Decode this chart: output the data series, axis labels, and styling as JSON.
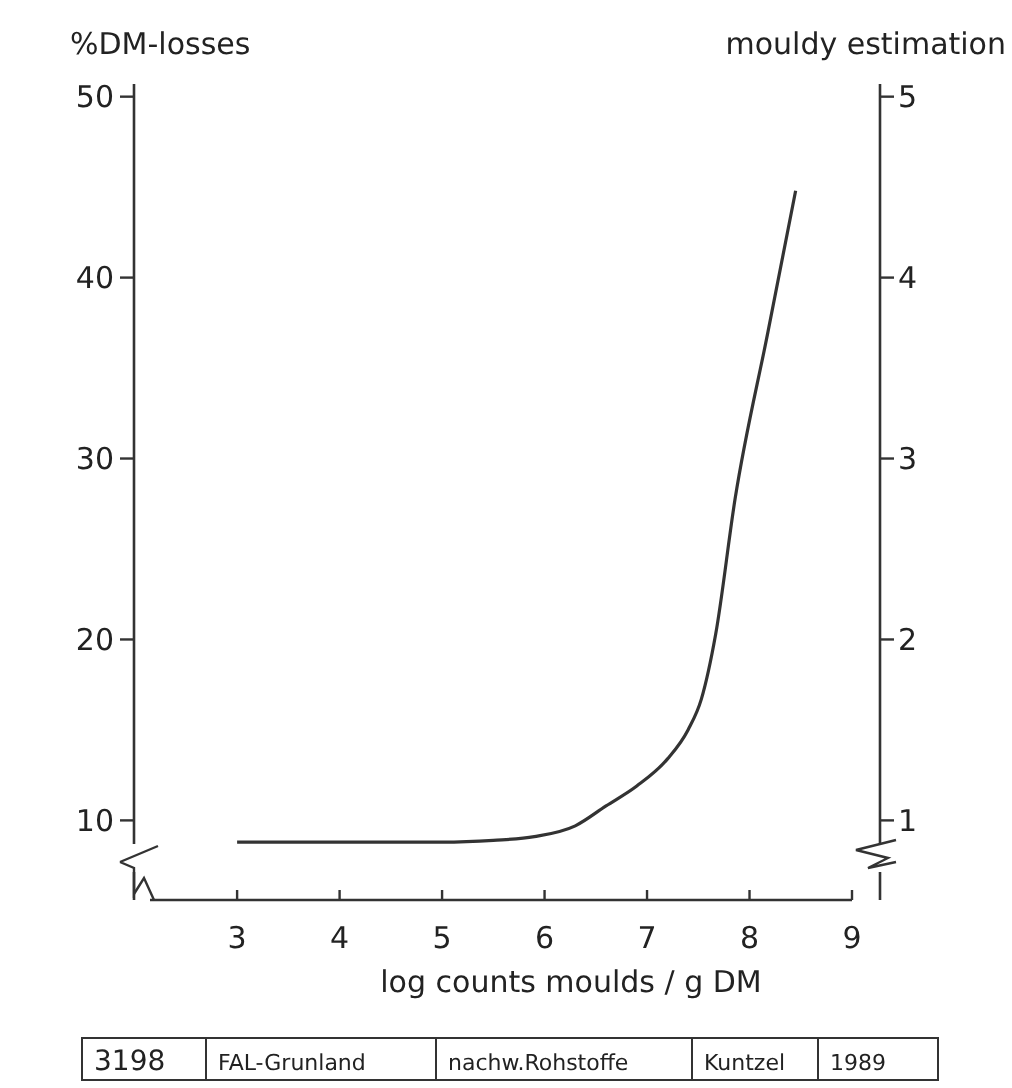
{
  "chart_data": {
    "type": "line",
    "ylabel": "%DM-losses",
    "y2label": "mouldy estimation",
    "xlabel": "log counts moulds / g DM",
    "x": [
      3,
      4,
      5,
      5.5,
      5.9,
      6.3,
      6.6,
      6.9,
      7.2,
      7.4,
      7.53,
      7.67,
      7.86,
      8.18,
      8.45
    ],
    "series": [
      {
        "color": "#333333",
        "values": [
          8.8,
          8.8,
          8.8,
          8.9,
          9.1,
          9.7,
          10.8,
          11.9,
          13.4,
          15,
          16.7,
          20.3,
          27.8,
          37,
          44.8
        ]
      }
    ],
    "xlim": [
      2.15,
      9
    ],
    "xticks": [
      3,
      4,
      5,
      6,
      7,
      8,
      9
    ],
    "ylim": [
      5.6,
      50.7
    ],
    "yticks": [
      10,
      20,
      30,
      40,
      50
    ],
    "y2lim": [
      0.56,
      5.07
    ],
    "y2ticks": [
      1,
      2,
      3,
      4,
      5
    ],
    "marker": "none",
    "line_style": "solid",
    "annotations": [
      "3198",
      "FAL-Grunland",
      "nachw.Rohstoffe",
      "Kuntzel",
      "1989"
    ]
  }
}
